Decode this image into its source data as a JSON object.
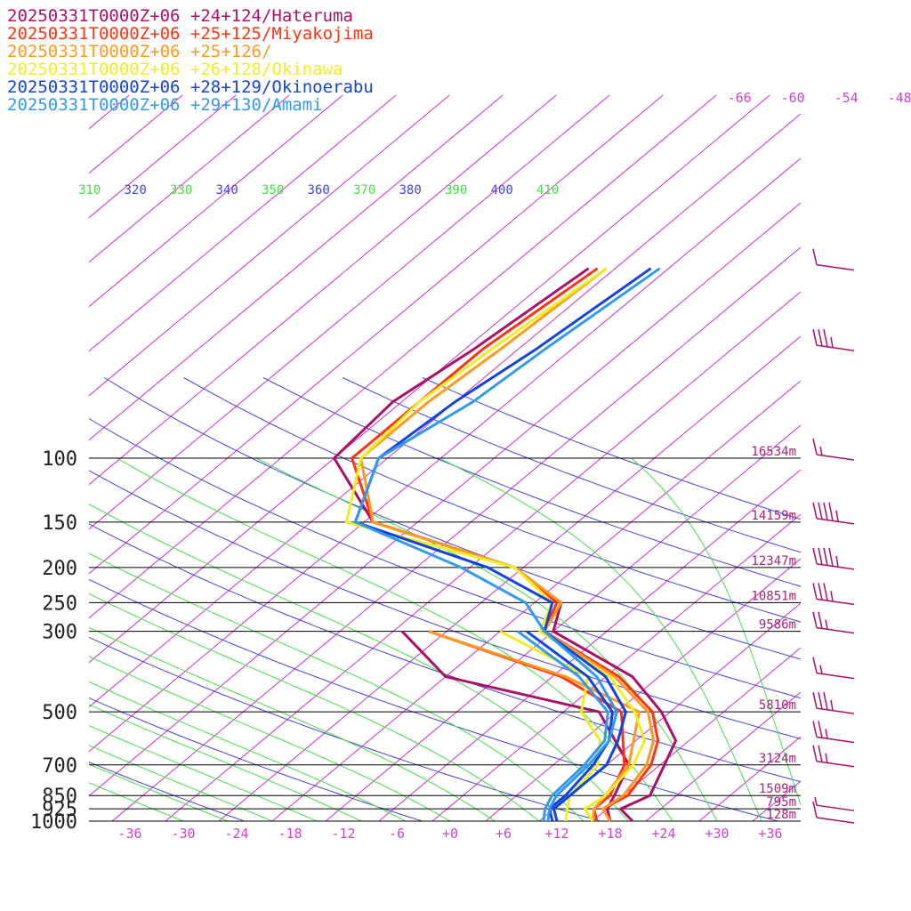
{
  "colors": {
    "isobar": "#000000",
    "isotherm": "#cc33cc",
    "dry_adiabat": "#4444dd",
    "moist_adiabat": "#44dd44",
    "barb": "#aa1166"
  },
  "chart_data": {
    "type": "line",
    "subtype": "skew-T log-P sounding",
    "title": "",
    "xlabel": "",
    "ylabel": "",
    "pressure_levels": [
      {
        "p": 100,
        "label": "100",
        "height": "16534m"
      },
      {
        "p": 150,
        "label": "150",
        "height": "14159m"
      },
      {
        "p": 200,
        "label": "200",
        "height": "12347m"
      },
      {
        "p": 250,
        "label": "250",
        "height": "10851m"
      },
      {
        "p": 300,
        "label": "300",
        "height": "9586m"
      },
      {
        "p": 500,
        "label": "500",
        "height": "5810m"
      },
      {
        "p": 700,
        "label": "700",
        "height": "3124m"
      },
      {
        "p": 850,
        "label": "850",
        "height": "1509m"
      },
      {
        "p": 925,
        "label": "925",
        "height": "795m"
      },
      {
        "p": 1000,
        "label": "1000",
        "height": "128m"
      }
    ],
    "temperature_ticks": [
      "-36",
      "-30",
      "-24",
      "-18",
      "-12",
      "-6",
      "+0",
      "+6",
      "+12",
      "+18",
      "+24",
      "+30",
      "+36"
    ],
    "temperature_tick_values": [
      -36,
      -30,
      -24,
      -18,
      -12,
      -6,
      0,
      6,
      12,
      18,
      24,
      30,
      36
    ],
    "upper_temperature_labels": [
      "-66",
      "-60",
      "-54",
      "-48"
    ],
    "upper_temperature_values": [
      -66,
      -60,
      -54,
      -48
    ],
    "theta_labels": [
      "310",
      "320",
      "330",
      "340",
      "350",
      "360",
      "370",
      "380",
      "390",
      "400",
      "410"
    ],
    "series": [
      {
        "name": "20250331T0000Z+06 +24+124/Hateruma",
        "color": "#aa1166",
        "temperature": [
          [
            1000,
            20.5
          ],
          [
            925,
            17.5
          ],
          [
            850,
            19.0
          ],
          [
            700,
            16.5
          ],
          [
            600,
            14.5
          ],
          [
            500,
            9.0
          ],
          [
            400,
            1.0
          ],
          [
            300,
            -14.0
          ],
          [
            250,
            -17.0
          ],
          [
            200,
            -27.0
          ],
          [
            150,
            -49.0
          ],
          [
            100,
            -62.0
          ],
          [
            70,
            -63.0
          ],
          [
            50,
            -61.0
          ],
          [
            30,
            -59.0
          ]
        ],
        "dewpoint": [
          [
            1000,
            18.0
          ],
          [
            925,
            16.0
          ],
          [
            850,
            15.0
          ],
          [
            700,
            12.5
          ],
          [
            500,
            2.0
          ],
          [
            400,
            -20.0
          ],
          [
            300,
            -31.0
          ]
        ]
      },
      {
        "name": "20250331T0000Z+06 +25+125/Miyakojima",
        "color": "#ff3311",
        "temperature": [
          [
            1000,
            18.0
          ],
          [
            925,
            15.5
          ],
          [
            850,
            16.5
          ],
          [
            700,
            15.0
          ],
          [
            600,
            12.5
          ],
          [
            500,
            8.0
          ],
          [
            400,
            -0.5
          ],
          [
            300,
            -15.0
          ],
          [
            250,
            -17.5
          ],
          [
            200,
            -27.0
          ],
          [
            150,
            -49.0
          ],
          [
            100,
            -60.0
          ],
          [
            70,
            -60.0
          ],
          [
            50,
            -60.0
          ],
          [
            30,
            -58.0
          ]
        ],
        "dewpoint": [
          [
            1000,
            16.5
          ],
          [
            925,
            14.5
          ],
          [
            850,
            14.5
          ],
          [
            700,
            12.0
          ],
          [
            500,
            4.5
          ],
          [
            400,
            -7.0
          ],
          [
            300,
            -28.0
          ]
        ]
      },
      {
        "name": "20250331T0000Z+06 +25+126/",
        "color": "#ff9922",
        "temperature": [
          [
            1000,
            18.0
          ],
          [
            925,
            15.5
          ],
          [
            850,
            16.0
          ],
          [
            700,
            14.5
          ],
          [
            600,
            12.0
          ],
          [
            500,
            7.5
          ],
          [
            400,
            -1.0
          ],
          [
            300,
            -15.0
          ],
          [
            250,
            -17.0
          ],
          [
            200,
            -27.0
          ],
          [
            150,
            -49.0
          ],
          [
            100,
            -59.0
          ],
          [
            70,
            -59.0
          ],
          [
            50,
            -58.0
          ],
          [
            30,
            -57.0
          ]
        ],
        "dewpoint": [
          [
            1000,
            16.0
          ],
          [
            925,
            14.5
          ],
          [
            850,
            14.0
          ],
          [
            700,
            12.5
          ],
          [
            500,
            6.5
          ],
          [
            400,
            -6.5
          ],
          [
            300,
            -28.0
          ]
        ]
      },
      {
        "name": "20250331T0000Z+06 +26+128/Okinawa",
        "color": "#eeee22",
        "temperature": [
          [
            1000,
            16.0
          ],
          [
            925,
            13.5
          ],
          [
            850,
            14.0
          ],
          [
            700,
            13.0
          ],
          [
            600,
            11.0
          ],
          [
            500,
            6.0
          ],
          [
            400,
            -1.5
          ],
          [
            300,
            -15.5
          ],
          [
            250,
            -18.0
          ],
          [
            200,
            -27.0
          ],
          [
            150,
            -52.0
          ],
          [
            100,
            -59.0
          ],
          [
            70,
            -60.0
          ],
          [
            50,
            -59.0
          ],
          [
            30,
            -57.0
          ]
        ],
        "dewpoint": [
          [
            1000,
            13.0
          ],
          [
            925,
            11.5
          ],
          [
            850,
            10.0
          ],
          [
            700,
            9.0
          ],
          [
            600,
            6.0
          ],
          [
            500,
            0.0
          ],
          [
            400,
            -4.0
          ],
          [
            300,
            -20.0
          ]
        ]
      },
      {
        "name": "20250331T0000Z+06 +28+129/Okinoerabu",
        "color": "#1144dd",
        "temperature": [
          [
            1000,
            12.0
          ],
          [
            925,
            10.0
          ],
          [
            850,
            10.0
          ],
          [
            700,
            10.0
          ],
          [
            600,
            8.0
          ],
          [
            500,
            5.0
          ],
          [
            400,
            -2.0
          ],
          [
            300,
            -15.0
          ],
          [
            250,
            -18.0
          ],
          [
            200,
            -30.0
          ],
          [
            150,
            -51.0
          ],
          [
            100,
            -57.0
          ],
          [
            70,
            -56.0
          ],
          [
            50,
            -54.0
          ],
          [
            30,
            -52.0
          ]
        ],
        "dewpoint": [
          [
            1000,
            11.5
          ],
          [
            925,
            9.5
          ],
          [
            850,
            9.5
          ],
          [
            700,
            8.5
          ],
          [
            600,
            7.0
          ],
          [
            500,
            3.5
          ],
          [
            400,
            -4.0
          ],
          [
            300,
            -17.0
          ]
        ]
      },
      {
        "name": "20250331T0000Z+06 +29+130/Amami",
        "color": "#3399ee",
        "temperature": [
          [
            1000,
            11.0
          ],
          [
            925,
            9.5
          ],
          [
            850,
            8.5
          ],
          [
            700,
            8.0
          ],
          [
            600,
            7.0
          ],
          [
            500,
            4.0
          ],
          [
            400,
            -3.0
          ],
          [
            300,
            -15.0
          ],
          [
            250,
            -21.0
          ],
          [
            200,
            -33.0
          ],
          [
            150,
            -51.0
          ],
          [
            100,
            -57.0
          ],
          [
            70,
            -54.0
          ],
          [
            50,
            -53.0
          ],
          [
            30,
            -51.0
          ]
        ],
        "dewpoint": [
          [
            1000,
            10.5
          ],
          [
            925,
            9.0
          ],
          [
            850,
            8.0
          ],
          [
            700,
            7.5
          ],
          [
            600,
            6.5
          ],
          [
            500,
            3.0
          ],
          [
            400,
            -5.0
          ],
          [
            300,
            -18.0
          ]
        ]
      }
    ],
    "wind_barbs": [
      {
        "p": 30,
        "speed_kt": 10
      },
      {
        "p": 50,
        "speed_kt": 35
      },
      {
        "p": 100,
        "speed_kt": 15
      },
      {
        "p": 150,
        "speed_kt": 45
      },
      {
        "p": 200,
        "speed_kt": 45
      },
      {
        "p": 250,
        "speed_kt": 35
      },
      {
        "p": 300,
        "speed_kt": 25
      },
      {
        "p": 400,
        "speed_kt": 15
      },
      {
        "p": 500,
        "speed_kt": 35
      },
      {
        "p": 600,
        "speed_kt": 25
      },
      {
        "p": 700,
        "speed_kt": 25
      },
      {
        "p": 925,
        "speed_kt": 5
      },
      {
        "p": 1000,
        "speed_kt": 10
      }
    ]
  }
}
